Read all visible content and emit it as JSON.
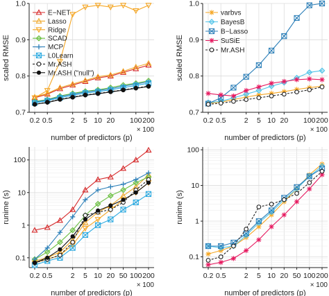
{
  "chart_data": [
    {
      "type": "line",
      "panel": "top-left",
      "xlabel": "number of predictors (p)",
      "x_multiplier": "× 100",
      "ylabel": "scaled RMSE",
      "ylog": false,
      "ylim": [
        0.7,
        1.0
      ],
      "yticks": [
        {
          "v": 0.7,
          "label": "0.7"
        },
        {
          "v": 0.8,
          "label": "0.8"
        },
        {
          "v": 0.9,
          "label": "0.9"
        },
        {
          "v": 1.0,
          "label": "1.0"
        }
      ],
      "grid": true,
      "legend_placement": "top-left",
      "categories": [
        "0.2",
        "0.5",
        "1",
        "2",
        "5",
        "10",
        "20",
        "50",
        "100",
        "200"
      ],
      "x_tick_labels": [
        "0.2",
        "0.5",
        "2",
        "5",
        "10",
        "20",
        "100",
        "200"
      ],
      "series": [
        {
          "name": "E−NET",
          "color": "#d62728",
          "marker": "triangle-up",
          "dash": false,
          "values": [
            0.74,
            0.75,
            0.765,
            0.775,
            0.785,
            0.795,
            0.8,
            0.81,
            0.82,
            0.83
          ]
        },
        {
          "name": "Lasso",
          "color": "#f0a92c",
          "marker": "triangle-up",
          "dash": false,
          "values": [
            0.742,
            0.752,
            0.768,
            0.778,
            0.788,
            0.798,
            0.803,
            0.813,
            0.825,
            0.835
          ]
        },
        {
          "name": "Ridge",
          "color": "#f5a623",
          "marker": "triangle-down",
          "dash": false,
          "values": [
            0.74,
            0.76,
            0.84,
            0.97,
            0.99,
            0.995,
            0.99,
            0.995,
            0.98,
            0.995
          ]
        },
        {
          "name": "SCAD",
          "color": "#6abf40",
          "marker": "diamond",
          "dash": false,
          "values": [
            0.73,
            0.735,
            0.745,
            0.752,
            0.758,
            0.762,
            0.768,
            0.775,
            0.78,
            0.787
          ]
        },
        {
          "name": "MCP",
          "color": "#2c7fb8",
          "marker": "plus",
          "dash": false,
          "values": [
            0.728,
            0.734,
            0.743,
            0.75,
            0.756,
            0.76,
            0.765,
            0.772,
            0.778,
            0.784
          ]
        },
        {
          "name": "L0Learn",
          "color": "#29a9e0",
          "marker": "boxed-x",
          "dash": false,
          "values": [
            0.726,
            0.732,
            0.74,
            0.747,
            0.753,
            0.757,
            0.762,
            0.768,
            0.774,
            0.78
          ]
        },
        {
          "name": "Mr.ASH",
          "color": "#222222",
          "marker": "circle-open",
          "dash": true,
          "values": [
            0.722,
            0.728,
            0.736,
            0.742,
            0.748,
            0.752,
            0.757,
            0.762,
            0.767,
            0.772
          ]
        },
        {
          "name": "Mr.ASH (\"null\")",
          "color": "#111111",
          "marker": "circle-filled",
          "dash": false,
          "values": [
            0.722,
            0.727,
            0.735,
            0.741,
            0.747,
            0.751,
            0.756,
            0.761,
            0.766,
            0.771
          ]
        }
      ]
    },
    {
      "type": "line",
      "panel": "top-right",
      "xlabel": "number of predictors (p)",
      "x_multiplier": "× 100",
      "ylabel": "scaled RMSE",
      "ylog": false,
      "ylim": [
        0.7,
        1.0
      ],
      "yticks": [
        {
          "v": 0.7,
          "label": "0.7"
        },
        {
          "v": 0.8,
          "label": "0.8"
        },
        {
          "v": 0.9,
          "label": "0.9"
        },
        {
          "v": 1.0,
          "label": "1.0"
        }
      ],
      "grid": true,
      "legend_placement": "top-left",
      "categories": [
        "0.2",
        "0.5",
        "1",
        "2",
        "5",
        "10",
        "20",
        "50",
        "100",
        "200"
      ],
      "x_tick_labels": [
        "0.2",
        "0.5",
        "2",
        "5",
        "10",
        "20",
        "100",
        "200"
      ],
      "series": [
        {
          "name": "varbvs",
          "color": "#f5a623",
          "marker": "asterisk",
          "dash": false,
          "values": [
            0.725,
            0.728,
            0.735,
            0.742,
            0.748,
            0.752,
            0.757,
            0.763,
            0.768,
            0.772
          ]
        },
        {
          "name": "BayesB",
          "color": "#4fc3e8",
          "marker": "diamond",
          "dash": false,
          "values": [
            0.727,
            0.73,
            0.74,
            0.75,
            0.76,
            0.772,
            0.782,
            0.795,
            0.81,
            0.815
          ]
        },
        {
          "name": "B−Lasso",
          "color": "#2c7fb8",
          "marker": "boxed-x",
          "dash": false,
          "values": [
            0.724,
            0.74,
            0.768,
            0.798,
            0.83,
            0.87,
            0.91,
            0.96,
            0.995,
            1.0
          ]
        },
        {
          "name": "SuSiE",
          "color": "#e6195f",
          "marker": "asterisk",
          "dash": false,
          "values": [
            0.752,
            0.748,
            0.745,
            0.76,
            0.77,
            0.78,
            0.785,
            0.79,
            0.792,
            0.79
          ]
        },
        {
          "name": "Mr.ASH",
          "color": "#222222",
          "marker": "circle-open",
          "dash": true,
          "values": [
            0.722,
            0.725,
            0.73,
            0.735,
            0.74,
            0.745,
            0.75,
            0.756,
            0.762,
            0.77
          ]
        }
      ]
    },
    {
      "type": "line",
      "panel": "bottom-left",
      "xlabel": "number of predictors (p)",
      "x_multiplier": "× 100",
      "ylabel": "runime (s)",
      "ylog": true,
      "ylim": [
        0.05,
        250
      ],
      "yticks": [
        {
          "v": 0.1,
          "label": "0.1"
        },
        {
          "v": 1,
          "label": "1"
        },
        {
          "v": 10,
          "label": "10"
        },
        {
          "v": 100,
          "label": "100"
        }
      ],
      "grid": true,
      "categories": [
        "0.2",
        "0.5",
        "1",
        "2",
        "5",
        "10",
        "20",
        "50",
        "100",
        "200"
      ],
      "x_tick_labels": [
        "0.2",
        "0.5",
        "2",
        "5",
        "10",
        "20",
        "50",
        "100",
        "200"
      ],
      "series": [
        {
          "name": "E−NET",
          "color": "#d62728",
          "marker": "triangle-up",
          "dash": false,
          "values": [
            0.7,
            0.85,
            1.4,
            3.0,
            12,
            25,
            30,
            55,
            100,
            200
          ]
        },
        {
          "name": "Lasso",
          "color": "#f0a92c",
          "marker": "triangle-up",
          "dash": false,
          "values": [
            0.08,
            0.1,
            0.15,
            0.35,
            1.2,
            2.5,
            4.0,
            8.0,
            15,
            35
          ]
        },
        {
          "name": "Ridge",
          "color": "#f5a623",
          "marker": "triangle-down",
          "dash": false,
          "values": [
            0.07,
            0.09,
            0.12,
            0.25,
            0.8,
            1.5,
            3.0,
            6.0,
            10,
            20
          ]
        },
        {
          "name": "SCAD",
          "color": "#6abf40",
          "marker": "diamond",
          "dash": false,
          "values": [
            0.09,
            0.15,
            0.3,
            0.7,
            2.0,
            4.5,
            8.0,
            12,
            20,
            30
          ]
        },
        {
          "name": "MCP",
          "color": "#2c7fb8",
          "marker": "plus",
          "dash": false,
          "values": [
            0.09,
            0.2,
            0.6,
            1.8,
            6.0,
            12,
            15,
            18,
            25,
            40
          ]
        },
        {
          "name": "L0Learn",
          "color": "#29a9e0",
          "marker": "boxed-x",
          "dash": false,
          "values": [
            0.06,
            0.08,
            0.1,
            0.2,
            0.5,
            1.0,
            1.5,
            3.0,
            5.0,
            9.0
          ]
        },
        {
          "name": "Mr.ASH",
          "color": "#222222",
          "marker": "circle-open",
          "dash": true,
          "values": [
            0.07,
            0.09,
            0.12,
            0.3,
            2.0,
            2.5,
            3.0,
            5.0,
            12,
            25
          ]
        },
        {
          "name": "Mr.ASH (\"null\")",
          "color": "#111111",
          "marker": "circle-filled",
          "dash": false,
          "values": [
            0.07,
            0.1,
            0.18,
            0.45,
            1.5,
            2.8,
            4.0,
            6.0,
            10,
            20
          ]
        }
      ]
    },
    {
      "type": "line",
      "panel": "bottom-right",
      "xlabel": "number of predictors (p)",
      "x_multiplier": "× 100",
      "ylabel": "runime (s)",
      "ylog": true,
      "ylim": [
        0.05,
        120
      ],
      "yticks": [
        {
          "v": 0.1,
          "label": "0.1"
        },
        {
          "v": 1,
          "label": "1"
        },
        {
          "v": 10,
          "label": "10"
        },
        {
          "v": 100,
          "label": "100"
        }
      ],
      "grid": true,
      "categories": [
        "0.2",
        "0.5",
        "1",
        "2",
        "5",
        "10",
        "20",
        "50",
        "100",
        "200"
      ],
      "x_tick_labels": [
        "0.2",
        "0.5",
        "2",
        "5",
        "10",
        "20",
        "50",
        "100",
        "200"
      ],
      "series": [
        {
          "name": "varbvs",
          "color": "#f5a623",
          "marker": "asterisk",
          "dash": false,
          "values": [
            0.12,
            0.15,
            0.2,
            0.35,
            0.7,
            1.5,
            3.5,
            8.0,
            20,
            40
          ]
        },
        {
          "name": "BayesB",
          "color": "#4fc3e8",
          "marker": "diamond",
          "dash": false,
          "values": [
            0.2,
            0.18,
            0.2,
            0.4,
            0.9,
            1.8,
            4.0,
            8.0,
            18,
            35
          ]
        },
        {
          "name": "B−Lasso",
          "color": "#2c7fb8",
          "marker": "boxed-x",
          "dash": false,
          "values": [
            0.2,
            0.2,
            0.25,
            0.45,
            1.0,
            2.0,
            4.5,
            9.0,
            18,
            30
          ]
        },
        {
          "name": "SuSiE",
          "color": "#e6195f",
          "marker": "asterisk",
          "dash": false,
          "values": [
            0.06,
            0.07,
            0.09,
            0.15,
            0.3,
            0.7,
            1.5,
            3.5,
            8.0,
            20
          ]
        },
        {
          "name": "Mr.ASH",
          "color": "#222222",
          "marker": "circle-open",
          "dash": true,
          "values": [
            0.08,
            0.1,
            0.2,
            0.6,
            2.5,
            3.0,
            4.0,
            6.0,
            12,
            25
          ]
        }
      ]
    }
  ]
}
